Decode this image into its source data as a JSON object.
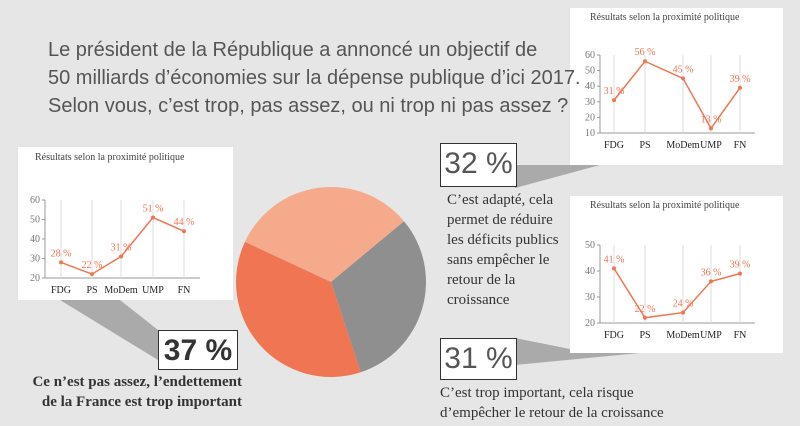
{
  "question": [
    "Le président de la République a annoncé un objectif de",
    "50 milliards d’économies sur la dépense publique d’ici 2017.",
    "Selon vous, c’est trop, pas assez, ou ni trop ni pas assez ?"
  ],
  "chart_data": [
    {
      "type": "pie",
      "categories": [
        "C’est adapté, cela permet de réduire les déficits publics sans empêcher le retour de la croissance",
        "C’est trop important, cela risque d’empêcher le retour de la croissance",
        "Ce n’est pas assez, l’endettement de la France est trop important"
      ],
      "values": [
        32,
        31,
        37
      ],
      "value_labels": [
        "32 %",
        "31 %",
        "37 %"
      ],
      "colors": [
        "#f5aa8b",
        "#8f8f8f",
        "#ef7553"
      ]
    },
    {
      "type": "line",
      "title": "Résultats selon la proximité politique",
      "categories": [
        "FDG",
        "PS",
        "MoDem",
        "UMP",
        "FN"
      ],
      "values": [
        31,
        56,
        45,
        13,
        39
      ],
      "value_labels": [
        "31 %",
        "56 %",
        "45 %",
        "13 %",
        "39 %"
      ],
      "color": "#ef7553",
      "ylim": [
        10,
        60
      ],
      "yticks": [
        10,
        20,
        30,
        40,
        50,
        60
      ]
    },
    {
      "type": "line",
      "title": "Résultats selon la proximité politique",
      "categories": [
        "FDG",
        "PS",
        "MoDem",
        "UMP",
        "FN"
      ],
      "values": [
        41,
        22,
        24,
        36,
        39
      ],
      "value_labels": [
        "41 %",
        "22 %",
        "24 %",
        "36 %",
        "39 %"
      ],
      "color": "#ef7553",
      "ylim": [
        20,
        50
      ],
      "yticks": [
        20,
        30,
        40,
        50
      ]
    },
    {
      "type": "line",
      "title": "Résultats selon la proximité politique",
      "categories": [
        "FDG",
        "PS",
        "MoDem",
        "UMP",
        "FN"
      ],
      "values": [
        28,
        22,
        31,
        51,
        44
      ],
      "value_labels": [
        "28 %",
        "22 %",
        "31 %",
        "51 %",
        "44 %"
      ],
      "color": "#ef7553",
      "ylim": [
        20,
        60
      ],
      "yticks": [
        20,
        30,
        40,
        50,
        60
      ]
    }
  ]
}
